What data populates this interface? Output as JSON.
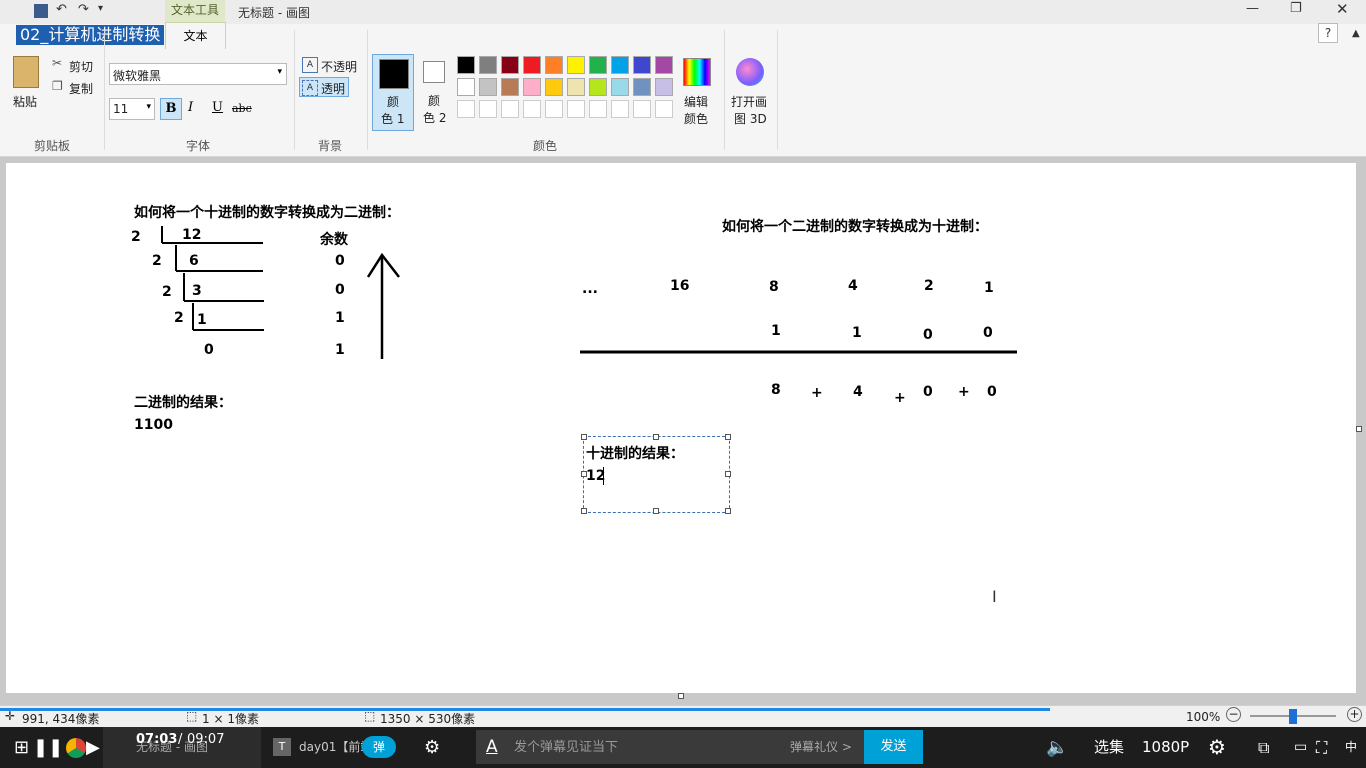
{
  "window": {
    "app_title": "无标题 - 画图",
    "context_tab_group": "文本工具",
    "active_tab": "文本",
    "video_title": "02_计算机进制转换",
    "help": "?"
  },
  "ribbon": {
    "clipboard": {
      "paste": "粘贴",
      "cut": "剪切",
      "copy": "复制",
      "group": "剪贴板"
    },
    "font": {
      "family": "微软雅黑",
      "size": "11",
      "bold": "B",
      "italic": "I",
      "underline": "U",
      "strike": "abc",
      "group": "字体"
    },
    "background": {
      "opaque": "不透明",
      "transparent": "透明",
      "group": "背景"
    },
    "colors": {
      "color1_line1": "颜",
      "color1_line2": "色 1",
      "color2_line1": "颜",
      "color2_line2": "色 2",
      "edit_line1": "编辑",
      "edit_line2": "颜色",
      "paint3d_line1": "打开画",
      "paint3d_line2": "图 3D",
      "group": "颜色",
      "palette_row1": [
        "#000000",
        "#7f7f7f",
        "#880015",
        "#ed1c24",
        "#ff7f27",
        "#fff200",
        "#22b14c",
        "#00a2e8",
        "#3f48cc",
        "#a349a4"
      ],
      "palette_row2": [
        "#ffffff",
        "#c3c3c3",
        "#b97a57",
        "#ffaec9",
        "#ffc90e",
        "#efe4b0",
        "#b5e61d",
        "#99d9ea",
        "#7092be",
        "#c8bfe7"
      ]
    }
  },
  "canvas": {
    "left_title": "如何将一个十进制的数字转换成为二进制：",
    "division": {
      "divisors": [
        "2",
        "2",
        "2",
        "2"
      ],
      "dividends": [
        "12",
        "6",
        "3",
        "1"
      ],
      "final_quotient": "0",
      "remainder_header": "余数",
      "remainders": [
        "0",
        "0",
        "1",
        "1"
      ]
    },
    "binary_result_label": "二进制的结果：",
    "binary_result": "1100",
    "right_title": "如何将一个二进制的数字转换成为十进制：",
    "weights": [
      "...",
      "16",
      "8",
      "4",
      "2",
      "1"
    ],
    "bits": [
      "1",
      "1",
      "0",
      "0"
    ],
    "sum_terms": [
      "8",
      "4",
      "0",
      "0"
    ],
    "plus": "+",
    "decimal_result_label": "十进制的结果：",
    "decimal_result": "12"
  },
  "statusbar": {
    "cursor_pos": "991, 434像素",
    "selection_size": "1 × 1像素",
    "canvas_size": "1350 × 530像素",
    "zoom": "100%"
  },
  "player": {
    "time_current": "07:03",
    "time_sep": "/",
    "time_total": "09:07",
    "window_tab1": "无标题 - 画图",
    "window_tab2": "day01【前端...",
    "danmu_toggle": "弹",
    "danmu_placeholder": "发个弹幕见证当下",
    "danmu_etiquette": "弹幕礼仪 >",
    "send": "发送",
    "episodes": "选集",
    "quality": "1080P",
    "ime": "中"
  }
}
